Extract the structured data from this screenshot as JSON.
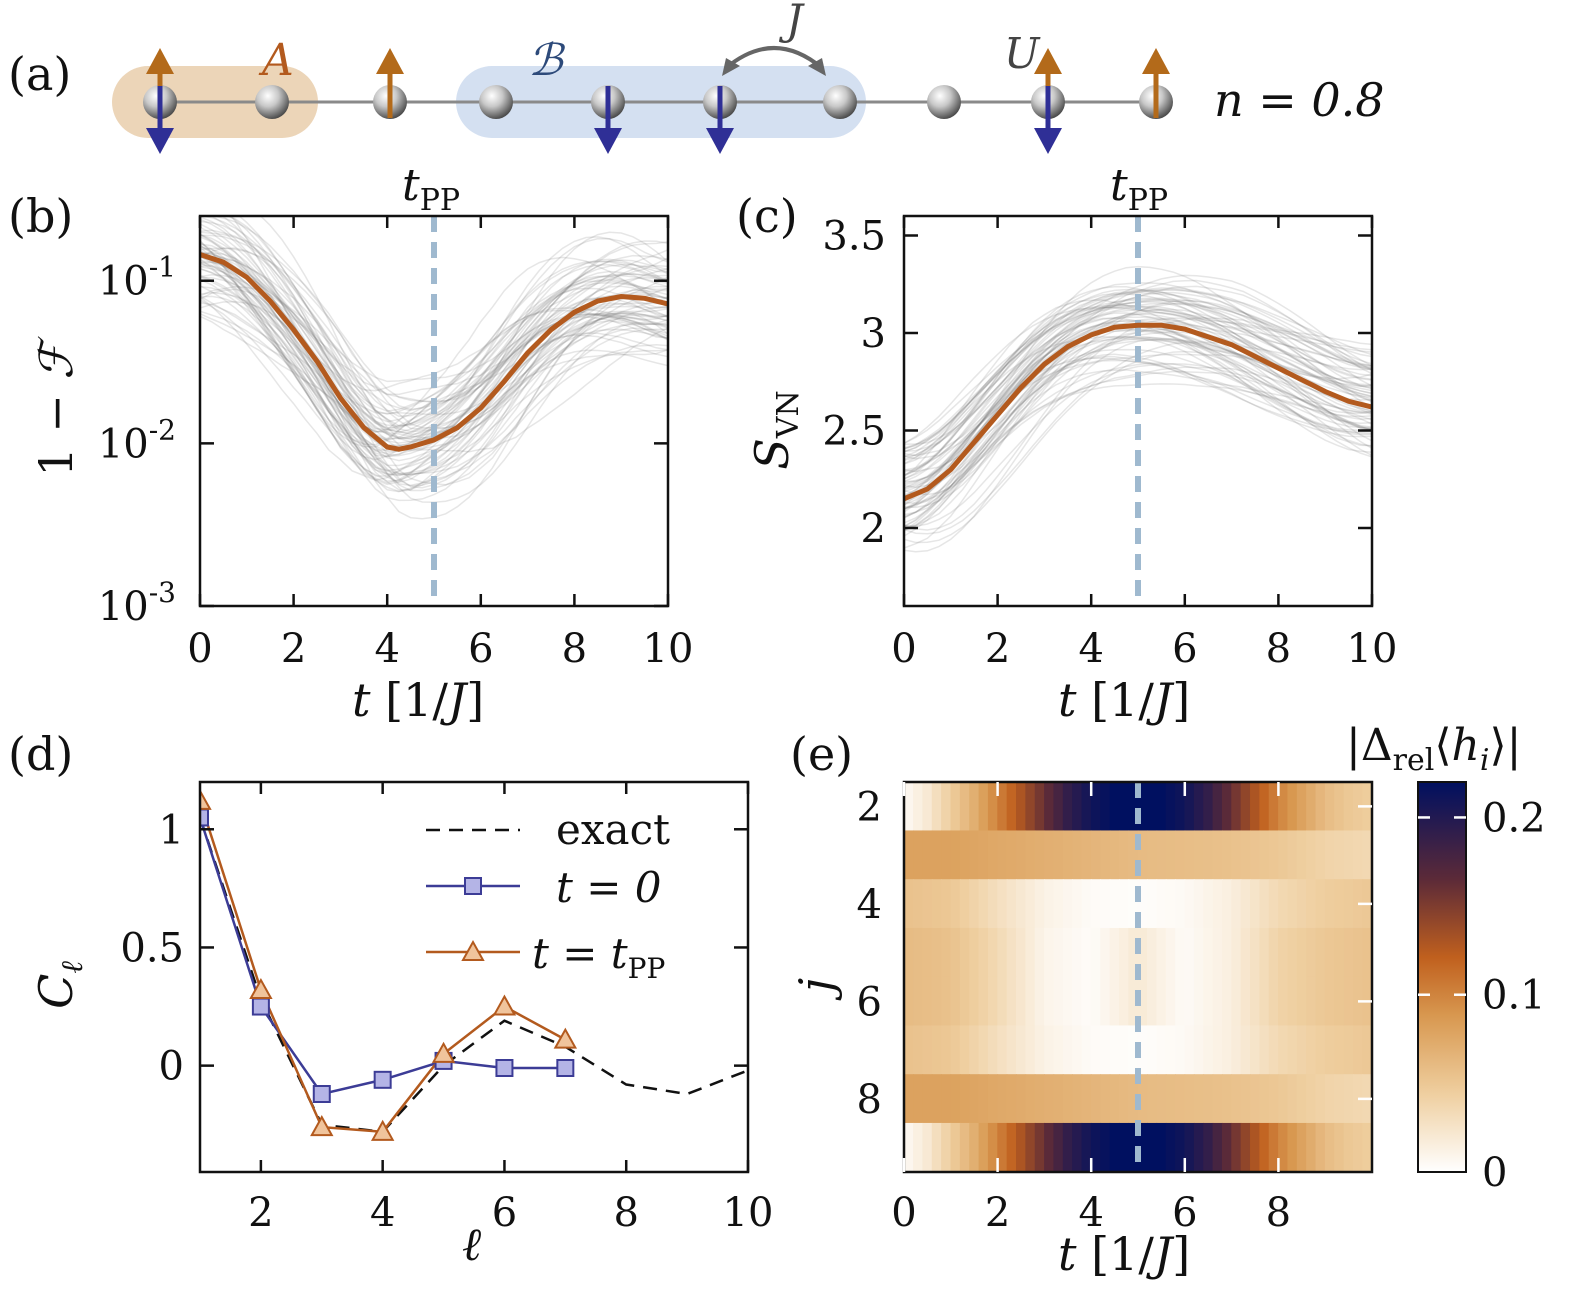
{
  "colors": {
    "orange": "#b35a1e",
    "blue_marker": "#3c3c96",
    "marker_fill_blue": "#b4b4e6",
    "marker_fill_orange": "#f0c49c",
    "dashed_ref": "#9fb9cf",
    "region_A": "#ecd5b8",
    "region_B": "#d4e0f1",
    "spin_up": "#b36a1a",
    "spin_down": "#2f2f96",
    "gray_traces": "#888888"
  },
  "panel_a": {
    "label": "(a)",
    "region_A_label": "A",
    "region_B_label": "ℬ",
    "hop_label": "J",
    "interaction_label": "U",
    "filling_label": "n = 0.8",
    "sites": [
      {
        "up": true,
        "down": true
      },
      {
        "up": false,
        "down": false
      },
      {
        "up": true,
        "down": false
      },
      {
        "up": false,
        "down": false
      },
      {
        "up": false,
        "down": true
      },
      {
        "up": false,
        "down": true
      },
      {
        "up": false,
        "down": false
      },
      {
        "up": false,
        "down": false
      },
      {
        "up": true,
        "down": true
      },
      {
        "up": true,
        "down": false
      }
    ]
  },
  "chart_data": [
    {
      "panel": "(b)",
      "type": "line",
      "top_label": "t_PP",
      "xlabel": "t [1/J]",
      "ylabel": "1 − ℱ",
      "yscale": "log",
      "xlim": [
        0,
        10
      ],
      "ylim": [
        0.001,
        0.25
      ],
      "xticks": [
        "0",
        "2",
        "4",
        "6",
        "8",
        "10"
      ],
      "yticks": [
        {
          "base": "10",
          "exp": "-1",
          "value": 0.1
        },
        {
          "base": "10",
          "exp": "-2",
          "value": 0.01
        },
        {
          "base": "10",
          "exp": "-3",
          "value": 0.001
        }
      ],
      "vline_x": 5,
      "mean": {
        "x": [
          0,
          0.5,
          1,
          1.5,
          2,
          2.5,
          3,
          3.5,
          4,
          4.25,
          4.5,
          5,
          5.5,
          6,
          6.5,
          7,
          7.5,
          8,
          8.5,
          9,
          9.5,
          10
        ],
        "y": [
          0.145,
          0.13,
          0.105,
          0.075,
          0.05,
          0.032,
          0.019,
          0.0125,
          0.0095,
          0.0092,
          0.0095,
          0.0105,
          0.0125,
          0.0165,
          0.024,
          0.036,
          0.05,
          0.064,
          0.075,
          0.08,
          0.078,
          0.072
        ]
      },
      "traces_description": "ensemble of gray realizations"
    },
    {
      "panel": "(c)",
      "type": "line",
      "top_label": "t_PP",
      "xlabel": "t [1/J]",
      "ylabel": "S_VN",
      "xlim": [
        0,
        10
      ],
      "ylim": [
        1.6,
        3.6
      ],
      "xticks": [
        "0",
        "2",
        "4",
        "6",
        "8",
        "10"
      ],
      "yticks": [
        "2",
        "2.5",
        "3",
        "3.5"
      ],
      "vline_x": 5,
      "mean": {
        "x": [
          0,
          0.5,
          1,
          1.5,
          2,
          2.5,
          3,
          3.5,
          4,
          4.5,
          5,
          5.5,
          6,
          6.5,
          7,
          7.5,
          8,
          8.5,
          9,
          9.5,
          10
        ],
        "y": [
          2.15,
          2.2,
          2.3,
          2.44,
          2.58,
          2.72,
          2.84,
          2.93,
          2.99,
          3.03,
          3.04,
          3.04,
          3.02,
          2.98,
          2.94,
          2.88,
          2.82,
          2.76,
          2.7,
          2.65,
          2.62
        ]
      }
    },
    {
      "panel": "(d)",
      "type": "line",
      "xlabel": "ℓ",
      "ylabel": "C_ℓ",
      "xlim": [
        1,
        10
      ],
      "ylim": [
        -0.45,
        1.2
      ],
      "xticks": [
        "2",
        "4",
        "6",
        "8",
        "10"
      ],
      "yticks": [
        "0",
        "0.5",
        "1"
      ],
      "series": [
        {
          "name": "exact",
          "x": [
            1,
            2,
            3,
            4,
            5,
            6,
            7,
            8,
            9,
            10
          ],
          "y": [
            1.05,
            0.28,
            -0.25,
            -0.28,
            0.0,
            0.19,
            0.08,
            -0.08,
            -0.12,
            -0.02
          ]
        },
        {
          "name": "t = 0",
          "x": [
            1,
            2,
            3,
            4,
            5,
            6,
            7
          ],
          "y": [
            1.05,
            0.25,
            -0.12,
            -0.06,
            0.02,
            -0.01,
            -0.01
          ]
        },
        {
          "name": "t = t_PP",
          "x": [
            1,
            2,
            3,
            4,
            5,
            6,
            7
          ],
          "y": [
            1.12,
            0.32,
            -0.26,
            -0.28,
            0.05,
            0.25,
            0.11
          ]
        }
      ],
      "legend": [
        "exact",
        "t = 0",
        "t = t_PP"
      ],
      "legend_position": "top-right"
    },
    {
      "panel": "(e)",
      "type": "heatmap",
      "xlabel": "t [1/J]",
      "ylabel": "j",
      "colorbar_label": "|Δ_rel⟨h_i⟩|",
      "xticks": [
        "0",
        "2",
        "4",
        "6",
        "8"
      ],
      "yticks": [
        "2",
        "4",
        "6",
        "8"
      ],
      "colorbar_ticks": [
        "0",
        "0.1",
        "0.2"
      ],
      "colorbar_range": [
        0,
        0.22
      ],
      "vline_x": 5,
      "rows_j": [
        2,
        3,
        4,
        5,
        6,
        7,
        8,
        9
      ],
      "row_profiles": [
        {
          "j": 2,
          "t": [
            0,
            0.5,
            1,
            1.5,
            2,
            2.5,
            3,
            3.5,
            4,
            4.5,
            5,
            5.5,
            6,
            6.5,
            7,
            7.5,
            8,
            8.5,
            9,
            9.5,
            10
          ],
          "v": [
            0.005,
            0.02,
            0.045,
            0.07,
            0.1,
            0.13,
            0.16,
            0.19,
            0.21,
            0.22,
            0.22,
            0.22,
            0.21,
            0.19,
            0.16,
            0.13,
            0.1,
            0.08,
            0.06,
            0.05,
            0.045
          ]
        },
        {
          "j": 3,
          "t": [
            0,
            1,
            2,
            3,
            4,
            5,
            6,
            7,
            8,
            9,
            10
          ],
          "v": [
            0.08,
            0.08,
            0.075,
            0.07,
            0.065,
            0.06,
            0.058,
            0.055,
            0.05,
            0.04,
            0.035
          ]
        },
        {
          "j": 4,
          "t": [
            0,
            1,
            2,
            3,
            4,
            5,
            6,
            7,
            8,
            9,
            10
          ],
          "v": [
            0.055,
            0.05,
            0.03,
            0.012,
            0.004,
            0.002,
            0.005,
            0.015,
            0.035,
            0.045,
            0.05
          ]
        },
        {
          "j": 5,
          "t": [
            0,
            1,
            2,
            3,
            4,
            5,
            6,
            7,
            8,
            9,
            10
          ],
          "v": [
            0.06,
            0.055,
            0.035,
            0.01,
            0.003,
            0.02,
            0.004,
            0.015,
            0.04,
            0.05,
            0.055
          ]
        },
        {
          "j": 6,
          "t": [
            0,
            1,
            2,
            3,
            4,
            5,
            6,
            7,
            8,
            9,
            10
          ],
          "v": [
            0.06,
            0.055,
            0.035,
            0.01,
            0.003,
            0.02,
            0.004,
            0.015,
            0.04,
            0.05,
            0.055
          ]
        },
        {
          "j": 7,
          "t": [
            0,
            1,
            2,
            3,
            4,
            5,
            6,
            7,
            8,
            9,
            10
          ],
          "v": [
            0.055,
            0.05,
            0.03,
            0.012,
            0.004,
            0.002,
            0.005,
            0.015,
            0.035,
            0.045,
            0.05
          ]
        },
        {
          "j": 8,
          "t": [
            0,
            1,
            2,
            3,
            4,
            5,
            6,
            7,
            8,
            9,
            10
          ],
          "v": [
            0.08,
            0.08,
            0.075,
            0.07,
            0.065,
            0.06,
            0.058,
            0.055,
            0.05,
            0.04,
            0.035
          ]
        },
        {
          "j": 9,
          "t": [
            0,
            0.5,
            1,
            1.5,
            2,
            2.5,
            3,
            3.5,
            4,
            4.5,
            5,
            5.5,
            6,
            6.5,
            7,
            7.5,
            8,
            8.5,
            9,
            9.5,
            10
          ],
          "v": [
            0.005,
            0.02,
            0.045,
            0.07,
            0.1,
            0.13,
            0.16,
            0.19,
            0.21,
            0.22,
            0.22,
            0.22,
            0.21,
            0.19,
            0.16,
            0.13,
            0.1,
            0.08,
            0.06,
            0.05,
            0.045
          ]
        }
      ]
    }
  ]
}
